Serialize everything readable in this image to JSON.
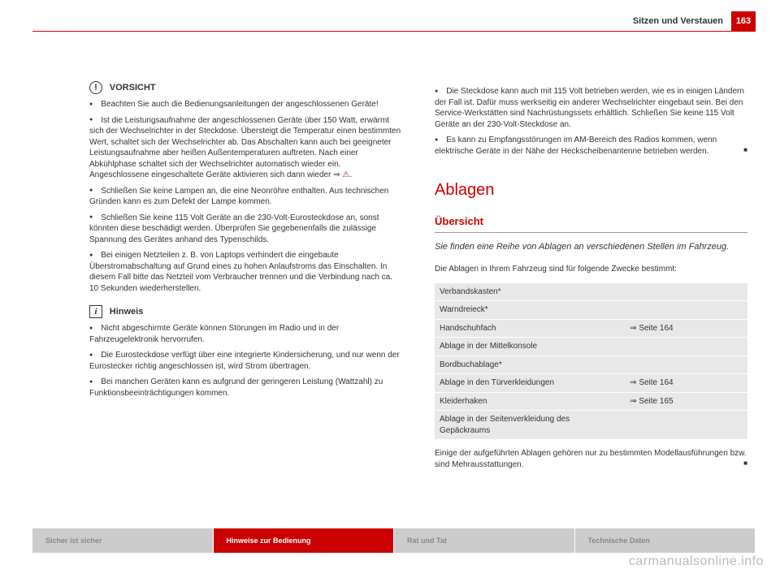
{
  "header": {
    "title": "Sitzen und Verstauen",
    "page": "163"
  },
  "left": {
    "vorsicht_label": "VORSICHT",
    "b1": "Beachten Sie auch die Bedienungsanleitungen der angeschlossenen Geräte!",
    "b2": "Ist die Leistungsaufnahme der angeschlossenen Geräte über 150 Watt, erwärmt sich der Wechselrichter in der Steckdose. Übersteigt die Temperatur einen bestimmten Wert, schaltet sich der Wechselrichter ab. Das Abschalten kann auch bei geeigneter Leistungsaufnahme aber heißen Außentemperaturen auftreten. Nach einer Abkühlphase schaltet sich der Wechselrichter automatisch wieder ein. Angeschlossene eingeschaltete Geräte aktivieren sich dann wieder ⇒ ",
    "b3": "Schließen Sie keine Lampen an, die eine Neonröhre enthalten. Aus technischen Gründen kann es zum Defekt der Lampe kommen.",
    "b4": "Schließen Sie keine 115 Volt Geräte an die 230-Volt-Eurosteckdose an, sonst könnten diese beschädigt werden. Überprüfen Sie gegebenenfalls die zulässige Spannung des Gerätes anhand des Typenschilds.",
    "b5": "Bei einigen Netzteilen z. B. von Laptops verhindert die eingebaute Überstromabschaltung auf Grund eines zu hohen Anlaufstroms das Einschalten. In diesem Fall bitte das Netzteil vom Verbraucher trennen und die Verbindung nach ca. 10 Sekunden wiederherstellen.",
    "hinweis_label": "Hinweis",
    "h1": "Nicht abgeschirmte Geräte können Störungen im Radio und in der Fahrzeugelektronik hervorrufen.",
    "h2": "Die Eurosteckdose verfügt über eine integrierte Kindersicherung, und nur wenn der Eurostecker richtig angeschlossen ist, wird Strom übertragen.",
    "h3": "Bei manchen Geräten kann es aufgrund der geringeren Leistung (Wattzahl) zu Funktionsbeeinträchtigungen kommen."
  },
  "right": {
    "b1": "Die Steckdose kann auch mit 115 Volt betrieben werden, wie es in einigen Ländern der Fall ist. Dafür muss werkseitig ein anderer Wechselrichter eingebaut sein. Bei den Service-Werkstätten sind Nachrüstungssets erhältlich. Schließen Sie keine 115 Volt Geräte an der 230-Volt-Steckdose an.",
    "b2": "Es kann zu Empfangsstörungen im AM-Bereich des Radios kommen, wenn elektrische Geräte in der Nähe der Heckscheibenantenne betrieben werden.",
    "h1": "Ablagen",
    "h2": "Übersicht",
    "lead": "Sie finden eine Reihe von Ablagen an verschiedenen Stellen im Fahrzeug.",
    "intro": "Die Ablagen in Ihrem Fahrzeug sind für folgende Zwecke bestimmt:",
    "table": [
      {
        "l": "Verbandskasten*",
        "r": ""
      },
      {
        "l": "Warndreieck*",
        "r": ""
      },
      {
        "l": "Handschuhfach",
        "r": "⇒ Seite 164"
      },
      {
        "l": "Ablage in der Mittelkonsole",
        "r": ""
      },
      {
        "l": "Bordbuchablage*",
        "r": ""
      },
      {
        "l": "Ablage in den Türverkleidungen",
        "r": "⇒ Seite 164"
      },
      {
        "l": "Kleiderhaken",
        "r": "⇒ Seite 165"
      },
      {
        "l": "Ablage in der Seitenverkleidung des Gepäckraums",
        "r": ""
      }
    ],
    "outro": "Einige der aufgeführten Ablagen gehören nur zu bestimmten Modellausführungen bzw. sind Mehrausstattungen."
  },
  "footer": {
    "t1": "Sicher ist sicher",
    "t2": "Hinweise zur Bedienung",
    "t3": "Rat und Tat",
    "t4": "Technische Daten"
  },
  "watermark": "carmanualsonline.info"
}
